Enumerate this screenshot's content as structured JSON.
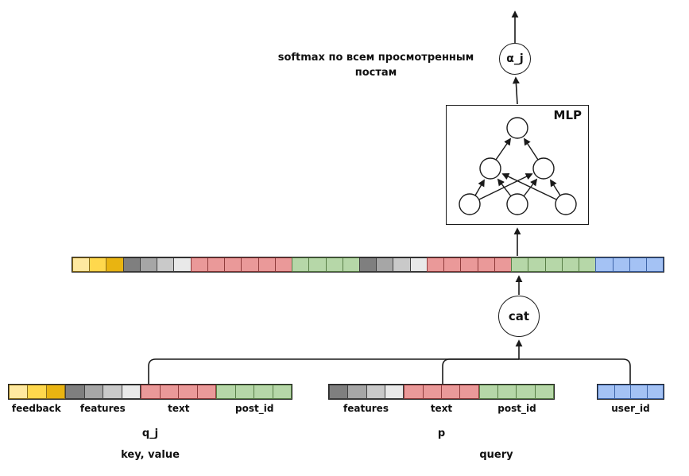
{
  "palette": {
    "y1": {
      "f": "#ffe9a0",
      "s": "#8a6d1a"
    },
    "y2": {
      "f": "#ffd84d",
      "s": "#8a6d1a"
    },
    "y3": {
      "f": "#e9b411",
      "s": "#8a6d1a"
    },
    "g1": {
      "f": "#7f7f7f",
      "s": "#3f3f3f"
    },
    "g2": {
      "f": "#a6a6a6",
      "s": "#3f3f3f"
    },
    "g3": {
      "f": "#c9c9c9",
      "s": "#3f3f3f"
    },
    "g4": {
      "f": "#e9e9e9",
      "s": "#3f3f3f"
    },
    "r": {
      "f": "#ea9999",
      "s": "#8f3b3b"
    },
    "gn": {
      "f": "#b6d7a8",
      "s": "#587e46"
    },
    "b": {
      "f": "#a4c2f4",
      "s": "#3d64a8"
    }
  },
  "annotations": {
    "softmax_note": "softmax по всем просмотренным постам",
    "alpha_label": "α_j",
    "mlp_label": "MLP",
    "cat_label": "cat",
    "query_role_label": "query"
  },
  "long_vector": {
    "cells": [
      "y1",
      "y2",
      "y3",
      "g1",
      "g2",
      "g3",
      "g4",
      "r",
      "r",
      "r",
      "r",
      "r",
      "r",
      "gn",
      "gn",
      "gn",
      "gn",
      "g1",
      "g2",
      "g3",
      "g4",
      "r",
      "r",
      "r",
      "r",
      "r",
      "gn",
      "gn",
      "gn",
      "gn",
      "gn",
      "b",
      "b",
      "b",
      "b"
    ]
  },
  "key_value_bar": {
    "sections": [
      {
        "label": "feedback",
        "cells": [
          "y1",
          "y2",
          "y3"
        ]
      },
      {
        "label": "features",
        "cells": [
          "g1",
          "g2",
          "g3",
          "g4"
        ]
      },
      {
        "label": "text",
        "cells": [
          "r",
          "r",
          "r",
          "r"
        ]
      },
      {
        "label": "post_id",
        "cells": [
          "gn",
          "gn",
          "gn",
          "gn"
        ]
      }
    ],
    "vector_label": "q_j",
    "role_label": "key, value"
  },
  "query_bar": {
    "sections": [
      {
        "label": "features",
        "cells": [
          "g1",
          "g2",
          "g3",
          "g4"
        ]
      },
      {
        "label": "text",
        "cells": [
          "r",
          "r",
          "r",
          "r"
        ]
      },
      {
        "label": "post_id",
        "cells": [
          "gn",
          "gn",
          "gn",
          "gn"
        ]
      }
    ],
    "vector_label": "p"
  },
  "user_bar": {
    "sections": [
      {
        "label": "user_id",
        "cells": [
          "b",
          "b",
          "b",
          "b"
        ]
      }
    ]
  }
}
